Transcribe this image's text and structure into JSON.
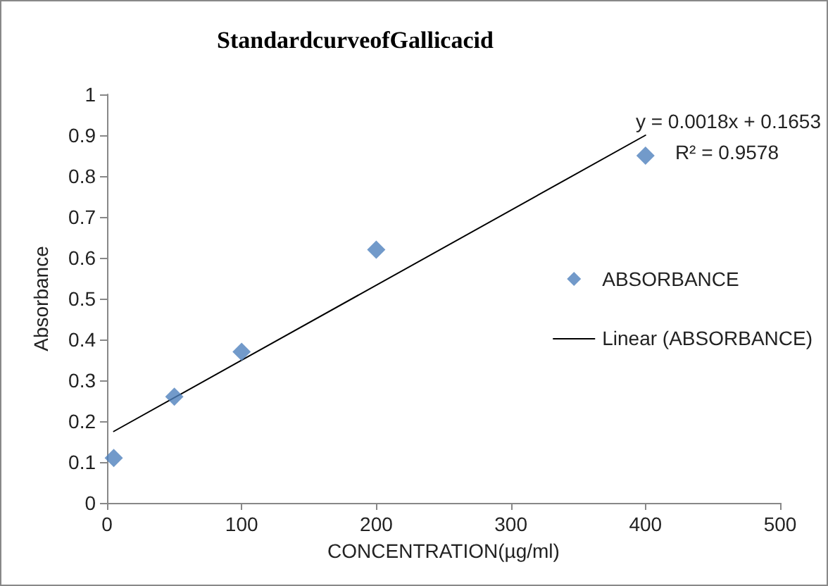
{
  "chart_data": {
    "type": "scatter",
    "title": "StandardcurveofGallicacid",
    "xlabel": "CONCENTRATION(µg/ml)",
    "ylabel": "Absorbance",
    "annotations": [
      "y = 0.0018x + 0.1653",
      "R² = 0.9578"
    ],
    "x": [
      5,
      50,
      100,
      200,
      400
    ],
    "series": [
      {
        "name": "ABSORBANCE",
        "color": "#4f81bd",
        "marker": "diamond",
        "values": [
          0.11,
          0.26,
          0.37,
          0.62,
          0.85
        ]
      },
      {
        "name": "Linear (ABSORBANCE)",
        "type": "line",
        "color": "#000000",
        "marker": "none",
        "line_style": "solid",
        "x": [
          5,
          400
        ],
        "values": [
          0.175,
          0.9
        ]
      }
    ],
    "xlim": [
      0,
      500
    ],
    "xticks": [
      0,
      100,
      200,
      300,
      400,
      500
    ],
    "ylim": [
      0,
      1
    ],
    "yticks": [
      0,
      0.1,
      0.2,
      0.3,
      0.4,
      0.5,
      0.6,
      0.7,
      0.8,
      0.9,
      1
    ],
    "grid": false,
    "legend": "right"
  }
}
